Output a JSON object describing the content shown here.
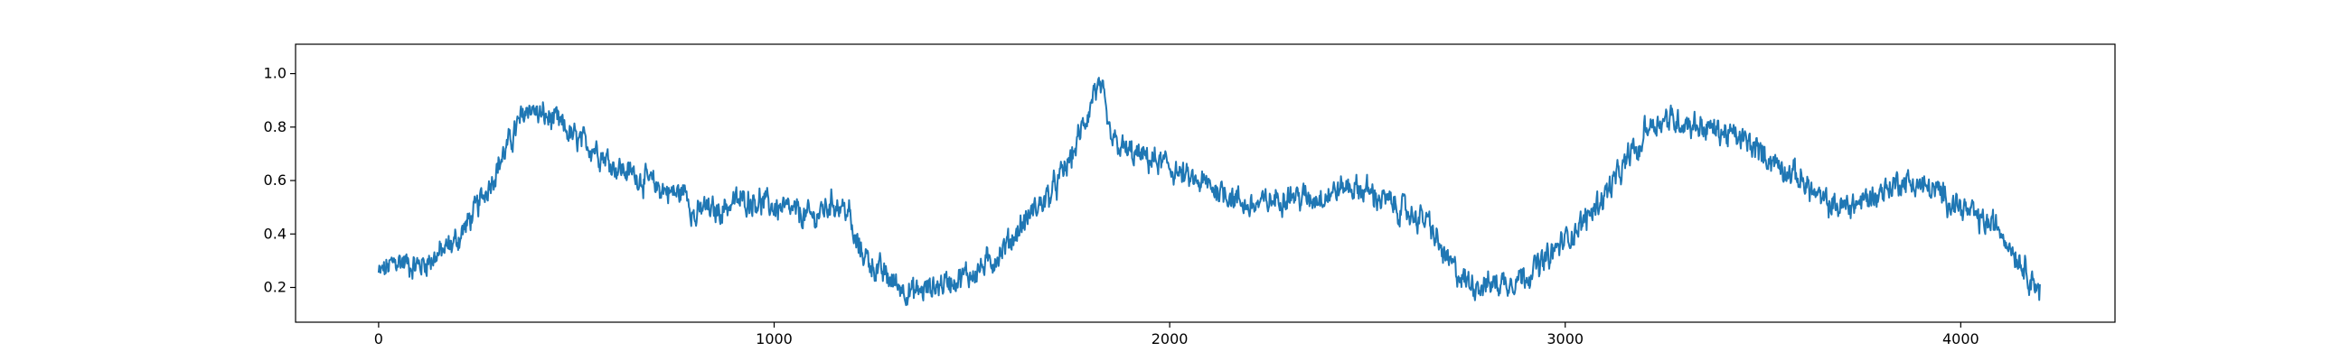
{
  "chart_data": {
    "type": "line",
    "title": "",
    "xlabel": "",
    "ylabel": "",
    "xlim": [
      -210,
      4390
    ],
    "ylim": [
      0.07,
      1.11
    ],
    "xticks": [
      0,
      1000,
      2000,
      3000,
      4000
    ],
    "xtick_labels": [
      "0",
      "1000",
      "2000",
      "3000",
      "4000"
    ],
    "yticks": [
      0.2,
      0.4,
      0.6,
      0.8,
      1.0
    ],
    "ytick_labels": [
      "0.2",
      "0.4",
      "0.6",
      "0.8",
      "1.0"
    ],
    "grid": false,
    "legend": "none",
    "series": [
      {
        "color": "#1f77b4",
        "x": [
          0,
          50,
          100,
          150,
          200,
          250,
          300,
          350,
          380,
          400,
          450,
          500,
          550,
          600,
          650,
          700,
          750,
          780,
          800,
          820,
          850,
          900,
          950,
          1000,
          1050,
          1100,
          1150,
          1190,
          1200,
          1250,
          1300,
          1350,
          1400,
          1450,
          1500,
          1550,
          1600,
          1650,
          1700,
          1750,
          1800,
          1810,
          1830,
          1850,
          1900,
          1950,
          2000,
          2050,
          2100,
          2150,
          2200,
          2250,
          2300,
          2350,
          2400,
          2450,
          2500,
          2550,
          2600,
          2650,
          2700,
          2750,
          2800,
          2850,
          2900,
          2950,
          3000,
          3050,
          3100,
          3150,
          3170,
          3190,
          3200,
          3250,
          3300,
          3350,
          3400,
          3450,
          3500,
          3550,
          3600,
          3650,
          3700,
          3750,
          3800,
          3850,
          3900,
          3950,
          4000,
          4050,
          4100,
          4150,
          4200
        ],
        "y": [
          0.25,
          0.3,
          0.28,
          0.32,
          0.38,
          0.5,
          0.65,
          0.8,
          0.88,
          0.85,
          0.82,
          0.75,
          0.72,
          0.65,
          0.62,
          0.58,
          0.55,
          0.56,
          0.45,
          0.5,
          0.48,
          0.52,
          0.53,
          0.5,
          0.48,
          0.46,
          0.52,
          0.48,
          0.38,
          0.28,
          0.22,
          0.18,
          0.2,
          0.23,
          0.25,
          0.3,
          0.38,
          0.48,
          0.55,
          0.68,
          0.88,
          0.95,
          0.92,
          0.75,
          0.7,
          0.68,
          0.65,
          0.6,
          0.58,
          0.55,
          0.5,
          0.52,
          0.55,
          0.53,
          0.55,
          0.58,
          0.56,
          0.52,
          0.48,
          0.45,
          0.3,
          0.22,
          0.21,
          0.22,
          0.25,
          0.3,
          0.38,
          0.45,
          0.55,
          0.65,
          0.72,
          0.7,
          0.8,
          0.83,
          0.82,
          0.8,
          0.78,
          0.75,
          0.7,
          0.65,
          0.6,
          0.52,
          0.5,
          0.52,
          0.56,
          0.6,
          0.58,
          0.55,
          0.5,
          0.45,
          0.42,
          0.3,
          0.19
        ]
      }
    ]
  }
}
